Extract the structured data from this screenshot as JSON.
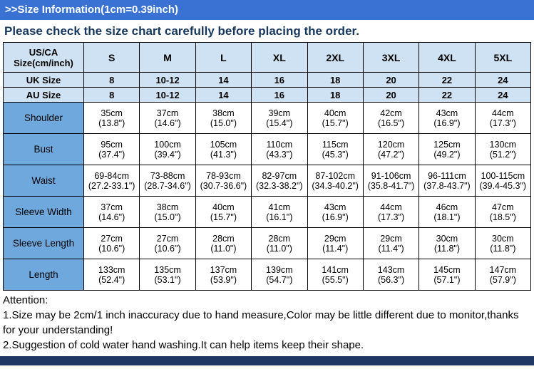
{
  "colors": {
    "header_bar": "#3a72d4",
    "notice_text": "#17375e",
    "table_header_bg": "#cfe2f3",
    "row_label_bg": "#6fa8dc",
    "footer_bar": "#1f3864",
    "cell_border": "#000000"
  },
  "header": {
    "title": ">>Size Information(1cm=0.39inch)"
  },
  "notice": "Please check the size chart carefully before placing the order.",
  "chart_data": {
    "type": "table",
    "title": "Size Information (1cm=0.39inch)",
    "columns": [
      "US/CA\nSize(cm/inch)",
      "S",
      "M",
      "L",
      "XL",
      "2XL",
      "3XL",
      "4XL",
      "5XL"
    ],
    "rows": [
      {
        "label": "UK Size",
        "values": [
          "8",
          "10-12",
          "14",
          "16",
          "18",
          "20",
          "22",
          "24"
        ]
      },
      {
        "label": "AU Size",
        "values": [
          "8",
          "10-12",
          "14",
          "16",
          "18",
          "20",
          "22",
          "24"
        ]
      },
      {
        "label": "Shoulder",
        "values": [
          "35cm\n(13.8\")",
          "37cm\n(14.6\")",
          "38cm\n(15.0\")",
          "39cm\n(15.4\")",
          "40cm\n(15.7\")",
          "42cm\n(16.5\")",
          "43cm\n(16.9\")",
          "44cm\n(17.3\")"
        ]
      },
      {
        "label": "Bust",
        "values": [
          "95cm\n(37.4\")",
          "100cm\n(39.4\")",
          "105cm\n(41.3\")",
          "110cm\n(43.3\")",
          "115cm\n(45.3\")",
          "120cm\n(47.2\")",
          "125cm\n(49.2\")",
          "130cm\n(51.2\")"
        ]
      },
      {
        "label": "Waist",
        "values": [
          "69-84cm\n(27.2-33.1\")",
          "73-88cm\n(28.7-34.6\")",
          "78-93cm\n(30.7-36.6\")",
          "82-97cm\n(32.3-38.2\")",
          "87-102cm\n(34.3-40.2\")",
          "91-106cm\n(35.8-41.7\")",
          "96-111cm\n(37.8-43.7\")",
          "100-115cm\n(39.4-45.3\")"
        ]
      },
      {
        "label": "Sleeve Width",
        "values": [
          "37cm\n(14.6\")",
          "38cm\n(15.0\")",
          "40cm\n(15.7\")",
          "41cm\n(16.1\")",
          "43cm\n(16.9\")",
          "44cm\n(17.3\")",
          "46cm\n(18.1\")",
          "47cm\n(18.5\")"
        ]
      },
      {
        "label": "Sleeve Length",
        "values": [
          "27cm\n(10.6\")",
          "27cm\n(10.6\")",
          "28cm\n(11.0\")",
          "28cm\n(11.0\")",
          "29cm\n(11.4\")",
          "29cm\n(11.4\")",
          "30cm\n(11.8\")",
          "30cm\n(11.8\")"
        ]
      },
      {
        "label": "Length",
        "values": [
          "133cm\n(52.4\")",
          "135cm\n(53.1\")",
          "137cm\n(53.9\")",
          "139cm\n(54.7\")",
          "141cm\n(55.5\")",
          "143cm\n(56.3\")",
          "145cm\n(57.1\")",
          "147cm\n(57.9\")"
        ]
      }
    ]
  },
  "attention": {
    "heading": "Attention:",
    "line1": "1.Size may be 2cm/1 inch inaccuracy due to hand measure,Color may be little different due to monitor,thanks for your understanding!",
    "line2": "2.Suggestion of cold water hand washing.It can help items keep their shape."
  }
}
